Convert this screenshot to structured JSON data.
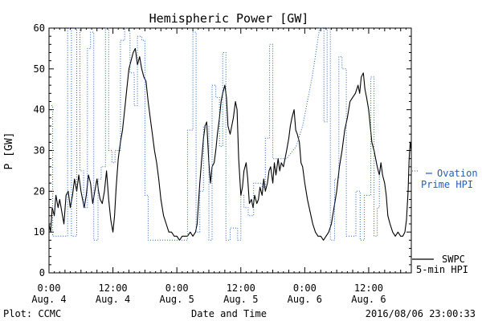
{
  "chart_data": {
    "type": "line",
    "title": "Hemispheric Power [GW]",
    "ylabel": "P [GW]",
    "xlabel": "Date and Time",
    "ylim": [
      0,
      60
    ],
    "yticks": [
      0,
      10,
      20,
      30,
      40,
      50,
      60
    ],
    "xlim": [
      0,
      68
    ],
    "xticks": [
      {
        "h": 0,
        "time": "0:00",
        "date": "Aug. 4"
      },
      {
        "h": 12,
        "time": "12:00",
        "date": "Aug. 4"
      },
      {
        "h": 24,
        "time": "0:00",
        "date": "Aug. 5"
      },
      {
        "h": 36,
        "time": "12:00",
        "date": "Aug. 5"
      },
      {
        "h": 48,
        "time": "0:00",
        "date": "Aug. 6"
      },
      {
        "h": 60,
        "time": "12:00",
        "date": "Aug. 6"
      }
    ],
    "grid": false,
    "series": [
      {
        "name": "SWPC 5-min HPI",
        "color": "#000000",
        "style": "solid",
        "points": [
          [
            0,
            12
          ],
          [
            0.3,
            10
          ],
          [
            0.6,
            16
          ],
          [
            1,
            14
          ],
          [
            1.3,
            19
          ],
          [
            1.7,
            16
          ],
          [
            2,
            18
          ],
          [
            2.4,
            15
          ],
          [
            2.8,
            12
          ],
          [
            3.2,
            19
          ],
          [
            3.6,
            20
          ],
          [
            4,
            16
          ],
          [
            4.4,
            19
          ],
          [
            4.8,
            23
          ],
          [
            5.2,
            20
          ],
          [
            5.6,
            24
          ],
          [
            6,
            20
          ],
          [
            6.3,
            18
          ],
          [
            6.6,
            16
          ],
          [
            7,
            19
          ],
          [
            7.4,
            24
          ],
          [
            7.8,
            22
          ],
          [
            8.2,
            17
          ],
          [
            8.6,
            20
          ],
          [
            9,
            23
          ],
          [
            9.3,
            20
          ],
          [
            9.6,
            18
          ],
          [
            10,
            17
          ],
          [
            10.4,
            20
          ],
          [
            10.8,
            25
          ],
          [
            11.2,
            18
          ],
          [
            11.6,
            13
          ],
          [
            12,
            10
          ],
          [
            12.3,
            14
          ],
          [
            12.6,
            21
          ],
          [
            13,
            28
          ],
          [
            13.4,
            32
          ],
          [
            13.8,
            35
          ],
          [
            14.2,
            40
          ],
          [
            14.6,
            45
          ],
          [
            15,
            50
          ],
          [
            15.4,
            52
          ],
          [
            15.8,
            54
          ],
          [
            16.2,
            55
          ],
          [
            16.6,
            51
          ],
          [
            17,
            53
          ],
          [
            17.4,
            50
          ],
          [
            17.8,
            48
          ],
          [
            18.2,
            47
          ],
          [
            18.6,
            42
          ],
          [
            19,
            38
          ],
          [
            19.4,
            34
          ],
          [
            19.8,
            30
          ],
          [
            20.2,
            27
          ],
          [
            20.6,
            23
          ],
          [
            21,
            18
          ],
          [
            21.5,
            14
          ],
          [
            22,
            12
          ],
          [
            22.5,
            10
          ],
          [
            23,
            10
          ],
          [
            23.5,
            9
          ],
          [
            24,
            9
          ],
          [
            24.5,
            8
          ],
          [
            25,
            9
          ],
          [
            25.5,
            9
          ],
          [
            26,
            9
          ],
          [
            26.5,
            10
          ],
          [
            27,
            9
          ],
          [
            27.5,
            10
          ],
          [
            27.8,
            12
          ],
          [
            28,
            16
          ],
          [
            28.3,
            22
          ],
          [
            28.6,
            27
          ],
          [
            29,
            33
          ],
          [
            29.3,
            36
          ],
          [
            29.6,
            37
          ],
          [
            30,
            27
          ],
          [
            30.3,
            22
          ],
          [
            30.6,
            26
          ],
          [
            31,
            27
          ],
          [
            31.3,
            30
          ],
          [
            31.6,
            34
          ],
          [
            32,
            38
          ],
          [
            32.3,
            42
          ],
          [
            32.6,
            44
          ],
          [
            33,
            46
          ],
          [
            33.3,
            43
          ],
          [
            33.6,
            36
          ],
          [
            34,
            34
          ],
          [
            34.3,
            36
          ],
          [
            34.6,
            38
          ],
          [
            35,
            42
          ],
          [
            35.3,
            40
          ],
          [
            35.6,
            28
          ],
          [
            36,
            19
          ],
          [
            36.3,
            21
          ],
          [
            36.6,
            25
          ],
          [
            37,
            27
          ],
          [
            37.3,
            23
          ],
          [
            37.6,
            17
          ],
          [
            38,
            18
          ],
          [
            38.3,
            16
          ],
          [
            38.6,
            19
          ],
          [
            39,
            17
          ],
          [
            39.3,
            18
          ],
          [
            39.6,
            21
          ],
          [
            40,
            19
          ],
          [
            40.3,
            23
          ],
          [
            40.6,
            20
          ],
          [
            41,
            22
          ],
          [
            41.3,
            25
          ],
          [
            41.6,
            26
          ],
          [
            42,
            22
          ],
          [
            42.3,
            27
          ],
          [
            42.6,
            24
          ],
          [
            43,
            28
          ],
          [
            43.3,
            25
          ],
          [
            43.6,
            27
          ],
          [
            44,
            26
          ],
          [
            44.3,
            28
          ],
          [
            44.6,
            30
          ],
          [
            45,
            33
          ],
          [
            45.3,
            36
          ],
          [
            45.6,
            38
          ],
          [
            46,
            40
          ],
          [
            46.3,
            35
          ],
          [
            46.6,
            34
          ],
          [
            47,
            32
          ],
          [
            47.3,
            27
          ],
          [
            47.6,
            26
          ],
          [
            48,
            22
          ],
          [
            48.5,
            18
          ],
          [
            49,
            15
          ],
          [
            49.5,
            12
          ],
          [
            50,
            10
          ],
          [
            50.5,
            9
          ],
          [
            51,
            9
          ],
          [
            51.5,
            8
          ],
          [
            52,
            9
          ],
          [
            52.5,
            10
          ],
          [
            53,
            12
          ],
          [
            53.5,
            16
          ],
          [
            54,
            20
          ],
          [
            54.5,
            26
          ],
          [
            55,
            30
          ],
          [
            55.5,
            35
          ],
          [
            56,
            38
          ],
          [
            56.5,
            42
          ],
          [
            57,
            43
          ],
          [
            57.5,
            44
          ],
          [
            58,
            46
          ],
          [
            58.3,
            44
          ],
          [
            58.6,
            48
          ],
          [
            59,
            49
          ],
          [
            59.3,
            45
          ],
          [
            59.6,
            43
          ],
          [
            60,
            40
          ],
          [
            60.3,
            36
          ],
          [
            60.6,
            32
          ],
          [
            61,
            30
          ],
          [
            61.3,
            28
          ],
          [
            61.6,
            26
          ],
          [
            62,
            24
          ],
          [
            62.3,
            27
          ],
          [
            62.6,
            24
          ],
          [
            63,
            22
          ],
          [
            63.3,
            19
          ],
          [
            63.6,
            14
          ],
          [
            64,
            12
          ],
          [
            64.5,
            10
          ],
          [
            65,
            9
          ],
          [
            65.5,
            10
          ],
          [
            66,
            9
          ],
          [
            66.4,
            9
          ],
          [
            66.8,
            10
          ],
          [
            67.1,
            13
          ],
          [
            67.4,
            20
          ],
          [
            67.6,
            28
          ],
          [
            67.8,
            32
          ],
          [
            68,
            30
          ]
        ]
      },
      {
        "name": "Ovation Prime HPI",
        "color": "#1f5fbf",
        "style": "dotted",
        "points": [
          [
            0,
            41
          ],
          [
            0.7,
            41
          ],
          [
            0.7,
            9
          ],
          [
            1.3,
            9
          ],
          [
            3.5,
            9
          ],
          [
            3.5,
            60
          ],
          [
            4.2,
            60
          ],
          [
            4.2,
            9
          ],
          [
            5.2,
            9
          ],
          [
            5.2,
            60
          ],
          [
            5.8,
            60
          ],
          [
            5.8,
            25
          ],
          [
            6.5,
            25
          ],
          [
            6.5,
            16
          ],
          [
            7.2,
            16
          ],
          [
            7.2,
            55
          ],
          [
            7.8,
            55
          ],
          [
            7.8,
            59
          ],
          [
            8.4,
            59
          ],
          [
            8.4,
            8
          ],
          [
            9.2,
            8
          ],
          [
            9.2,
            23
          ],
          [
            9.8,
            23
          ],
          [
            9.8,
            26
          ],
          [
            10.6,
            26
          ],
          [
            10.6,
            60
          ],
          [
            11.2,
            60
          ],
          [
            11.2,
            30
          ],
          [
            11.8,
            30
          ],
          [
            11.8,
            27
          ],
          [
            12.4,
            27
          ],
          [
            12.4,
            30
          ],
          [
            13.4,
            30
          ],
          [
            13.4,
            57
          ],
          [
            14.2,
            57
          ],
          [
            14.2,
            60
          ],
          [
            15.2,
            60
          ],
          [
            15.2,
            49
          ],
          [
            16,
            49
          ],
          [
            16,
            41
          ],
          [
            16.6,
            41
          ],
          [
            16.6,
            58
          ],
          [
            17.4,
            58
          ],
          [
            17.4,
            57
          ],
          [
            18,
            57
          ],
          [
            18,
            19
          ],
          [
            18.6,
            19
          ],
          [
            18.6,
            8
          ],
          [
            20,
            8
          ],
          [
            20,
            8
          ],
          [
            21,
            8
          ],
          [
            21,
            8
          ],
          [
            22.5,
            8
          ],
          [
            25,
            8
          ],
          [
            25,
            8
          ],
          [
            26,
            8
          ],
          [
            26,
            35
          ],
          [
            27,
            35
          ],
          [
            27,
            59
          ],
          [
            27.6,
            59
          ],
          [
            27.6,
            10
          ],
          [
            28.3,
            10
          ],
          [
            28.3,
            20
          ],
          [
            29,
            20
          ],
          [
            29,
            36
          ],
          [
            30,
            36
          ],
          [
            30,
            8
          ],
          [
            30.6,
            8
          ],
          [
            30.6,
            46
          ],
          [
            31.3,
            46
          ],
          [
            31.3,
            43
          ],
          [
            32,
            43
          ],
          [
            32,
            31
          ],
          [
            32.6,
            31
          ],
          [
            32.6,
            54
          ],
          [
            33.2,
            54
          ],
          [
            33.2,
            8
          ],
          [
            34,
            8
          ],
          [
            34,
            11
          ],
          [
            35.4,
            11
          ],
          [
            35.4,
            8
          ],
          [
            36,
            8
          ],
          [
            36,
            19
          ],
          [
            36.6,
            19
          ],
          [
            36.6,
            16
          ],
          [
            37.4,
            16
          ],
          [
            37.4,
            14
          ],
          [
            38.4,
            14
          ],
          [
            38.4,
            22
          ],
          [
            40,
            22
          ],
          [
            40,
            21
          ],
          [
            40.6,
            21
          ],
          [
            40.6,
            33
          ],
          [
            41.4,
            33
          ],
          [
            41.4,
            56
          ],
          [
            42,
            56
          ],
          [
            42,
            28
          ],
          [
            44.6,
            28
          ],
          [
            46.4,
            31
          ],
          [
            47.6,
            36
          ],
          [
            49.4,
            48
          ],
          [
            50.8,
            60
          ],
          [
            51.6,
            60
          ],
          [
            51.6,
            37
          ],
          [
            52.2,
            37
          ],
          [
            52.2,
            60
          ],
          [
            52.8,
            60
          ],
          [
            52.8,
            8
          ],
          [
            53.6,
            8
          ],
          [
            53.6,
            23
          ],
          [
            54.4,
            23
          ],
          [
            54.4,
            53
          ],
          [
            55,
            53
          ],
          [
            55,
            50
          ],
          [
            55.8,
            50
          ],
          [
            55.8,
            9
          ],
          [
            56.4,
            9
          ],
          [
            57.6,
            9
          ],
          [
            57.6,
            20
          ],
          [
            58.4,
            20
          ],
          [
            58.4,
            8
          ],
          [
            59.2,
            8
          ],
          [
            59.2,
            19
          ],
          [
            60.4,
            19
          ],
          [
            60.4,
            48
          ],
          [
            61,
            48
          ],
          [
            61,
            9
          ],
          [
            61.6,
            9
          ],
          [
            61.6,
            16
          ],
          [
            62,
            16
          ],
          [
            62,
            25
          ],
          [
            62.6,
            25
          ]
        ]
      }
    ],
    "legend": {
      "placement": "right",
      "swpc_line1": "SWPC",
      "swpc_line2": "5-min HPI",
      "ovation_line1": "Ovation",
      "ovation_line2": "Prime HPI"
    }
  },
  "footer": {
    "plot_credit": "Plot: CCMC",
    "timestamp": "2016/08/06 23:00:33"
  }
}
